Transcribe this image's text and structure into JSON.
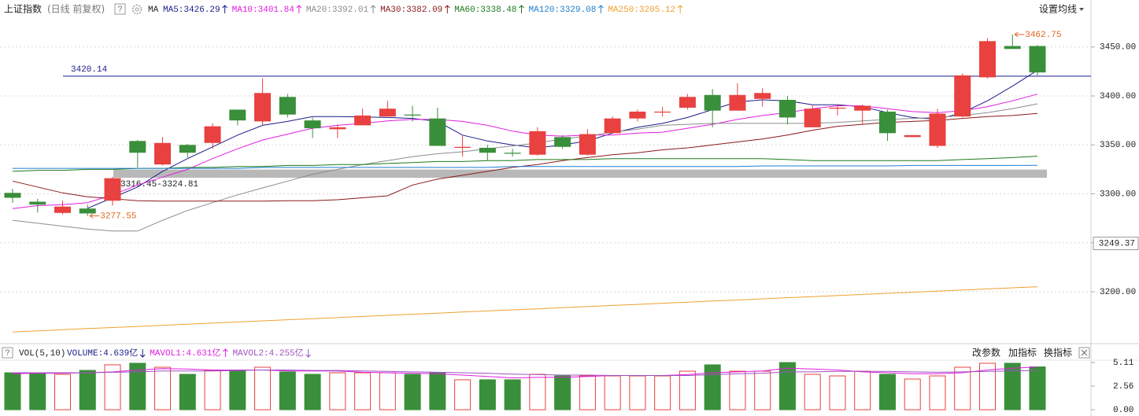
{
  "header": {
    "title": "上证指数",
    "subtitle": "(日线 前复权)",
    "help": "?",
    "ma": "MA",
    "settings": "设置均线"
  },
  "chart_data": [
    {
      "type": "candlestick",
      "up_color": "#e8413f",
      "down_color": "#3a8f3a",
      "extreme_color": "#e0641e",
      "open": [
        3301,
        3292,
        3280.5,
        3285,
        3293,
        3354,
        3330,
        3350,
        3352,
        3386,
        3374,
        3399,
        3375,
        3366,
        3370,
        3379,
        3381,
        3377,
        3347,
        3347,
        3342,
        3340,
        3358,
        3340,
        3362,
        3377,
        3383,
        3388,
        3401,
        3385,
        3397,
        3396,
        3368,
        3387,
        3385,
        3384,
        3358,
        3349,
        3379,
        3419,
        3451,
        3451
      ],
      "high": [
        3305,
        3295,
        3293,
        3289,
        3317.5,
        3355,
        3358,
        3351,
        3372,
        3386,
        3418,
        3402,
        3378,
        3371,
        3387,
        3395,
        3390,
        3388,
        3360,
        3350,
        3346,
        3368,
        3360,
        3366,
        3379,
        3386,
        3389,
        3402,
        3407,
        3413,
        3408,
        3400,
        3391,
        3391,
        3391,
        3386,
        3360,
        3387,
        3423,
        3459,
        3462.75,
        3452
      ],
      "low": [
        3291,
        3281,
        3279,
        3277.55,
        3288,
        3327,
        3329,
        3337,
        3346,
        3370,
        3370,
        3378,
        3357,
        3357,
        3370,
        3379,
        3374,
        3349,
        3338,
        3334,
        3338,
        3339,
        3346,
        3339,
        3362,
        3374,
        3379,
        3386,
        3368,
        3385,
        3389,
        3371,
        3368,
        3380,
        3371,
        3354,
        3358,
        3347,
        3378,
        3418,
        3448,
        3421
      ],
      "close": [
        3296,
        3289,
        3287,
        3280,
        3316,
        3342,
        3352,
        3342,
        3369,
        3375,
        3403,
        3381,
        3367,
        3368,
        3380,
        3387,
        3380,
        3349,
        3348,
        3342,
        3341,
        3364,
        3348,
        3361,
        3377,
        3384,
        3384,
        3399,
        3385,
        3401,
        3403,
        3378,
        3387,
        3388,
        3390,
        3362,
        3360,
        3382,
        3421,
        3456,
        3448,
        3424
      ],
      "series": [
        {
          "name": "MA5:3426.29",
          "color": "#1c1c8a",
          "arrow": "up",
          "values": [
            null,
            null,
            null,
            3285.3,
            3296,
            3307,
            3323,
            3336,
            3348,
            3360,
            3370,
            3374,
            3379,
            3379,
            3378.5,
            3378,
            3377,
            3374,
            3360,
            3354,
            3350,
            3347,
            3350,
            3354,
            3362,
            3368,
            3372,
            3378,
            3386,
            3394,
            3396,
            3395,
            3391,
            3391,
            3389,
            3383,
            3378,
            3376,
            3383,
            3395,
            3410,
            3426.29
          ]
        },
        {
          "name": "MA10:3401.84",
          "color": "#e01ee0",
          "arrow": "up",
          "values": [
            3285,
            3288,
            3289,
            3291,
            3299,
            3309,
            3317,
            3325,
            3336,
            3346,
            3355,
            3361,
            3367,
            3370,
            3372,
            3374.5,
            3376,
            3376,
            3374,
            3370,
            3364,
            3360,
            3359,
            3360,
            3360,
            3362,
            3363,
            3367,
            3371,
            3376,
            3380,
            3383,
            3387,
            3390,
            3390,
            3387,
            3384,
            3383,
            3385,
            3389,
            3395,
            3401.84
          ]
        },
        {
          "name": "MA20:3392.01",
          "color": "#8c8c8c",
          "arrow": "up",
          "values": [
            3273,
            3270,
            3267,
            3264,
            3262,
            3262,
            3273,
            3283,
            3291,
            3299,
            3306,
            3313,
            3320,
            3325,
            3330,
            3334,
            3338,
            3341,
            3343,
            3346,
            3349,
            3352,
            3356,
            3359,
            3363,
            3366,
            3370,
            3371,
            3372,
            3372,
            3372,
            3372,
            3372,
            3373,
            3374.5,
            3376,
            3377,
            3378,
            3380,
            3383,
            3387,
            3392.01
          ]
        },
        {
          "name": "MA30:3382.09",
          "color": "#8b1a1a",
          "arrow": "up",
          "values": [
            3313,
            3307,
            3301,
            3297,
            3295,
            3293,
            3292.6,
            3292.6,
            3292.6,
            3292.6,
            3292.6,
            3293,
            3293,
            3294,
            3296,
            3298,
            3309,
            3315,
            3319,
            3323,
            3327,
            3330,
            3334,
            3337,
            3340,
            3342,
            3345,
            3347,
            3350,
            3353,
            3356,
            3360,
            3365,
            3369,
            3371,
            3373,
            3374,
            3375,
            3377,
            3379,
            3380,
            3382.09
          ]
        },
        {
          "name": "MA60:3338.48",
          "color": "#1e7a1e",
          "arrow": "up",
          "values": [
            3323,
            3324,
            3324,
            3325,
            3325,
            3326,
            3326,
            3327,
            3327,
            3328,
            3328,
            3329,
            3329,
            3330,
            3330,
            3331,
            3332,
            3333,
            3333,
            3334,
            3334,
            3335,
            3335,
            3335,
            3336,
            3336,
            3336,
            3336,
            3336,
            3336,
            3336,
            3335,
            3334,
            3334,
            3334,
            3334,
            3334,
            3334,
            3335,
            3336,
            3337,
            3338.48
          ]
        },
        {
          "name": "MA120:3329.08",
          "color": "#1f7fd0",
          "arrow": "up",
          "values": [
            3326,
            3326,
            3326,
            3326,
            3326,
            3326,
            3326,
            3326,
            3326,
            3326,
            3327,
            3327,
            3327,
            3327,
            3327,
            3327,
            3327,
            3327,
            3327,
            3327,
            3328,
            3328,
            3328,
            3328,
            3328,
            3328,
            3328,
            3328,
            3328,
            3328,
            3328.5,
            3328.5,
            3328.5,
            3328.5,
            3328.5,
            3328.5,
            3329,
            3329,
            3329,
            3329,
            3329,
            3329.08
          ]
        },
        {
          "name": "MA250:3205.12",
          "color": "#f0a030",
          "arrow": "up",
          "values": [
            3159,
            3160.1,
            3161.3,
            3162.4,
            3163.5,
            3164.6,
            3165.8,
            3166.9,
            3168,
            3169.1,
            3170.3,
            3171.4,
            3172.5,
            3173.6,
            3174.8,
            3175.9,
            3177,
            3178.1,
            3179.3,
            3180.4,
            3181.5,
            3182.6,
            3183.8,
            3184.9,
            3186,
            3187.1,
            3188.3,
            3189.4,
            3190.5,
            3191.6,
            3192.8,
            3193.9,
            3195,
            3196.1,
            3197.3,
            3198.4,
            3199.5,
            3200.6,
            3201.8,
            3202.9,
            3204,
            3205.12
          ]
        }
      ],
      "hline": {
        "value": 3420.14,
        "color": "#1c1c8a"
      },
      "band": {
        "low": 3316.45,
        "high": 3324.81,
        "label": "3316.45-3324.81",
        "color": "#b8b8b8"
      },
      "axis_marker": 3249.37,
      "ylim": [
        3147,
        3498
      ],
      "yticks": [
        {
          "value": 3200,
          "label": "3200.00"
        },
        {
          "value": 3250,
          "label": "3250.00"
        },
        {
          "value": 3300,
          "label": "3300.00"
        },
        {
          "value": 3350,
          "label": "3350.00"
        },
        {
          "value": 3400,
          "label": "3400.00"
        },
        {
          "value": 3450,
          "label": "3450.00"
        }
      ],
      "grid": true
    },
    {
      "type": "volume",
      "title": "VOL(5,10)",
      "help": "?",
      "buttons": [
        "改参数",
        "加指标",
        "换指标"
      ],
      "series": [
        {
          "name": "VOLUME:4.639亿",
          "type": "bar",
          "color": "#1c1c8a",
          "arrow": "down",
          "values": [
            4.0,
            4.0,
            3.83,
            4.26,
            4.86,
            5.03,
            4.6,
            3.83,
            4.26,
            4.26,
            4.6,
            4.09,
            3.83,
            4.0,
            4.0,
            4.0,
            3.83,
            4.0,
            3.24,
            3.24,
            3.24,
            3.83,
            3.66,
            3.66,
            3.66,
            3.66,
            3.66,
            4.17,
            4.86,
            4.17,
            4.17,
            5.11,
            3.83,
            3.66,
            4.17,
            3.83,
            3.32,
            3.66,
            4.6,
            5.03,
            5.03,
            4.639
          ]
        },
        {
          "name": "MAVOL1:4.631亿",
          "type": "line",
          "color": "#e01ee0",
          "arrow": "up",
          "values": [
            3.9,
            3.95,
            3.95,
            4.0,
            4.1,
            4.3,
            4.45,
            4.4,
            4.3,
            4.3,
            4.3,
            4.2,
            4.2,
            4.2,
            4.05,
            4.0,
            3.95,
            3.9,
            3.75,
            3.6,
            3.45,
            3.5,
            3.5,
            3.6,
            3.7,
            3.7,
            3.7,
            3.8,
            4.0,
            4.1,
            4.2,
            4.5,
            4.4,
            4.3,
            4.1,
            4.0,
            3.9,
            3.9,
            4.0,
            4.3,
            4.5,
            4.631
          ]
        },
        {
          "name": "MAVOL2:4.255亿",
          "type": "line",
          "color": "#a050c0",
          "arrow": "down",
          "values": [
            4.0,
            4.0,
            4.0,
            4.0,
            4.05,
            4.1,
            4.2,
            4.2,
            4.2,
            4.25,
            4.3,
            4.3,
            4.25,
            4.25,
            4.2,
            4.15,
            4.1,
            4.05,
            4.0,
            3.95,
            3.85,
            3.8,
            3.75,
            3.75,
            3.7,
            3.7,
            3.7,
            3.7,
            3.8,
            3.9,
            3.95,
            4.1,
            4.1,
            4.15,
            4.15,
            4.15,
            4.1,
            4.05,
            4.1,
            4.15,
            4.2,
            4.255
          ]
        }
      ],
      "ylim": [
        0,
        5.62
      ],
      "yticks": [
        {
          "value": 0,
          "label": "0.00"
        },
        2.56,
        5.11
      ]
    }
  ]
}
